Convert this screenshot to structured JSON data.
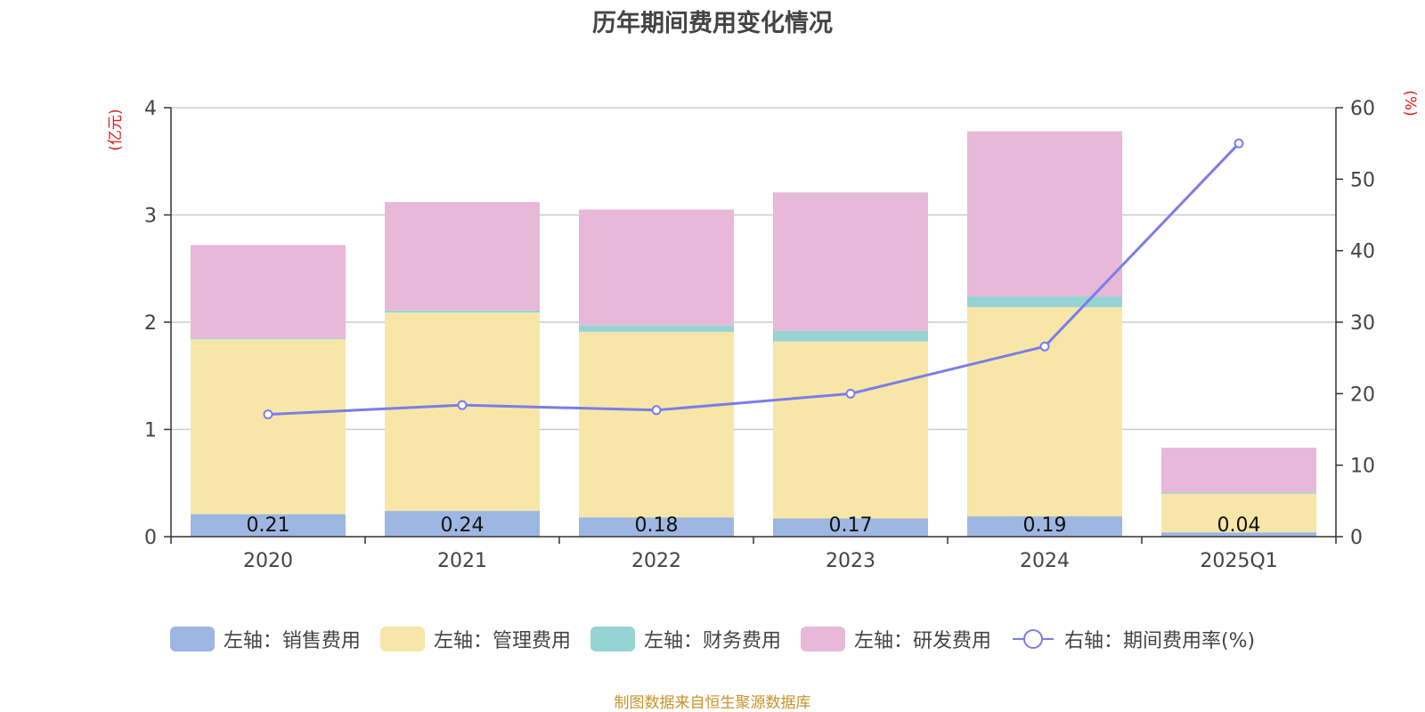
{
  "chart_data": {
    "type": "bar",
    "title": "历年期间费用变化情况",
    "categories": [
      "2020",
      "2021",
      "2022",
      "2023",
      "2024",
      "2025Q1"
    ],
    "left_axis": {
      "unit": "(亿元)",
      "ylim": [
        0,
        4
      ],
      "ticks": [
        "0",
        "1",
        "2",
        "3",
        "4"
      ]
    },
    "right_axis": {
      "unit": "(%)",
      "ylim": [
        0,
        60
      ],
      "ticks": [
        "0",
        "10",
        "20",
        "30",
        "40",
        "50",
        "60"
      ]
    },
    "series": [
      {
        "name": "左轴：销售费用",
        "color": "#9db6e2",
        "values": [
          0.21,
          0.24,
          0.18,
          0.17,
          0.19,
          0.04
        ],
        "labels": [
          "0.21",
          "0.24",
          "0.18",
          "0.17",
          "0.19",
          "0.04"
        ]
      },
      {
        "name": "左轴：管理费用",
        "color": "#f7e6a8",
        "values": [
          1.63,
          1.85,
          1.73,
          1.65,
          1.95,
          0.36
        ]
      },
      {
        "name": "左轴：财务费用",
        "color": "#96d4d4",
        "values": [
          0.01,
          0.02,
          0.06,
          0.1,
          0.1,
          0.01
        ]
      },
      {
        "name": "左轴：研发费用",
        "color": "#e8b8d8",
        "values": [
          0.87,
          1.01,
          1.08,
          1.29,
          1.54,
          0.42
        ]
      }
    ],
    "line": {
      "name": "右轴：期间费用率(%)",
      "color": "#7b7de8",
      "values": [
        17.1,
        18.4,
        17.7,
        20.0,
        26.6,
        55.0
      ]
    },
    "grid": true,
    "legend": "bottom-center"
  },
  "source_note": "制图数据来自恒生聚源数据库"
}
